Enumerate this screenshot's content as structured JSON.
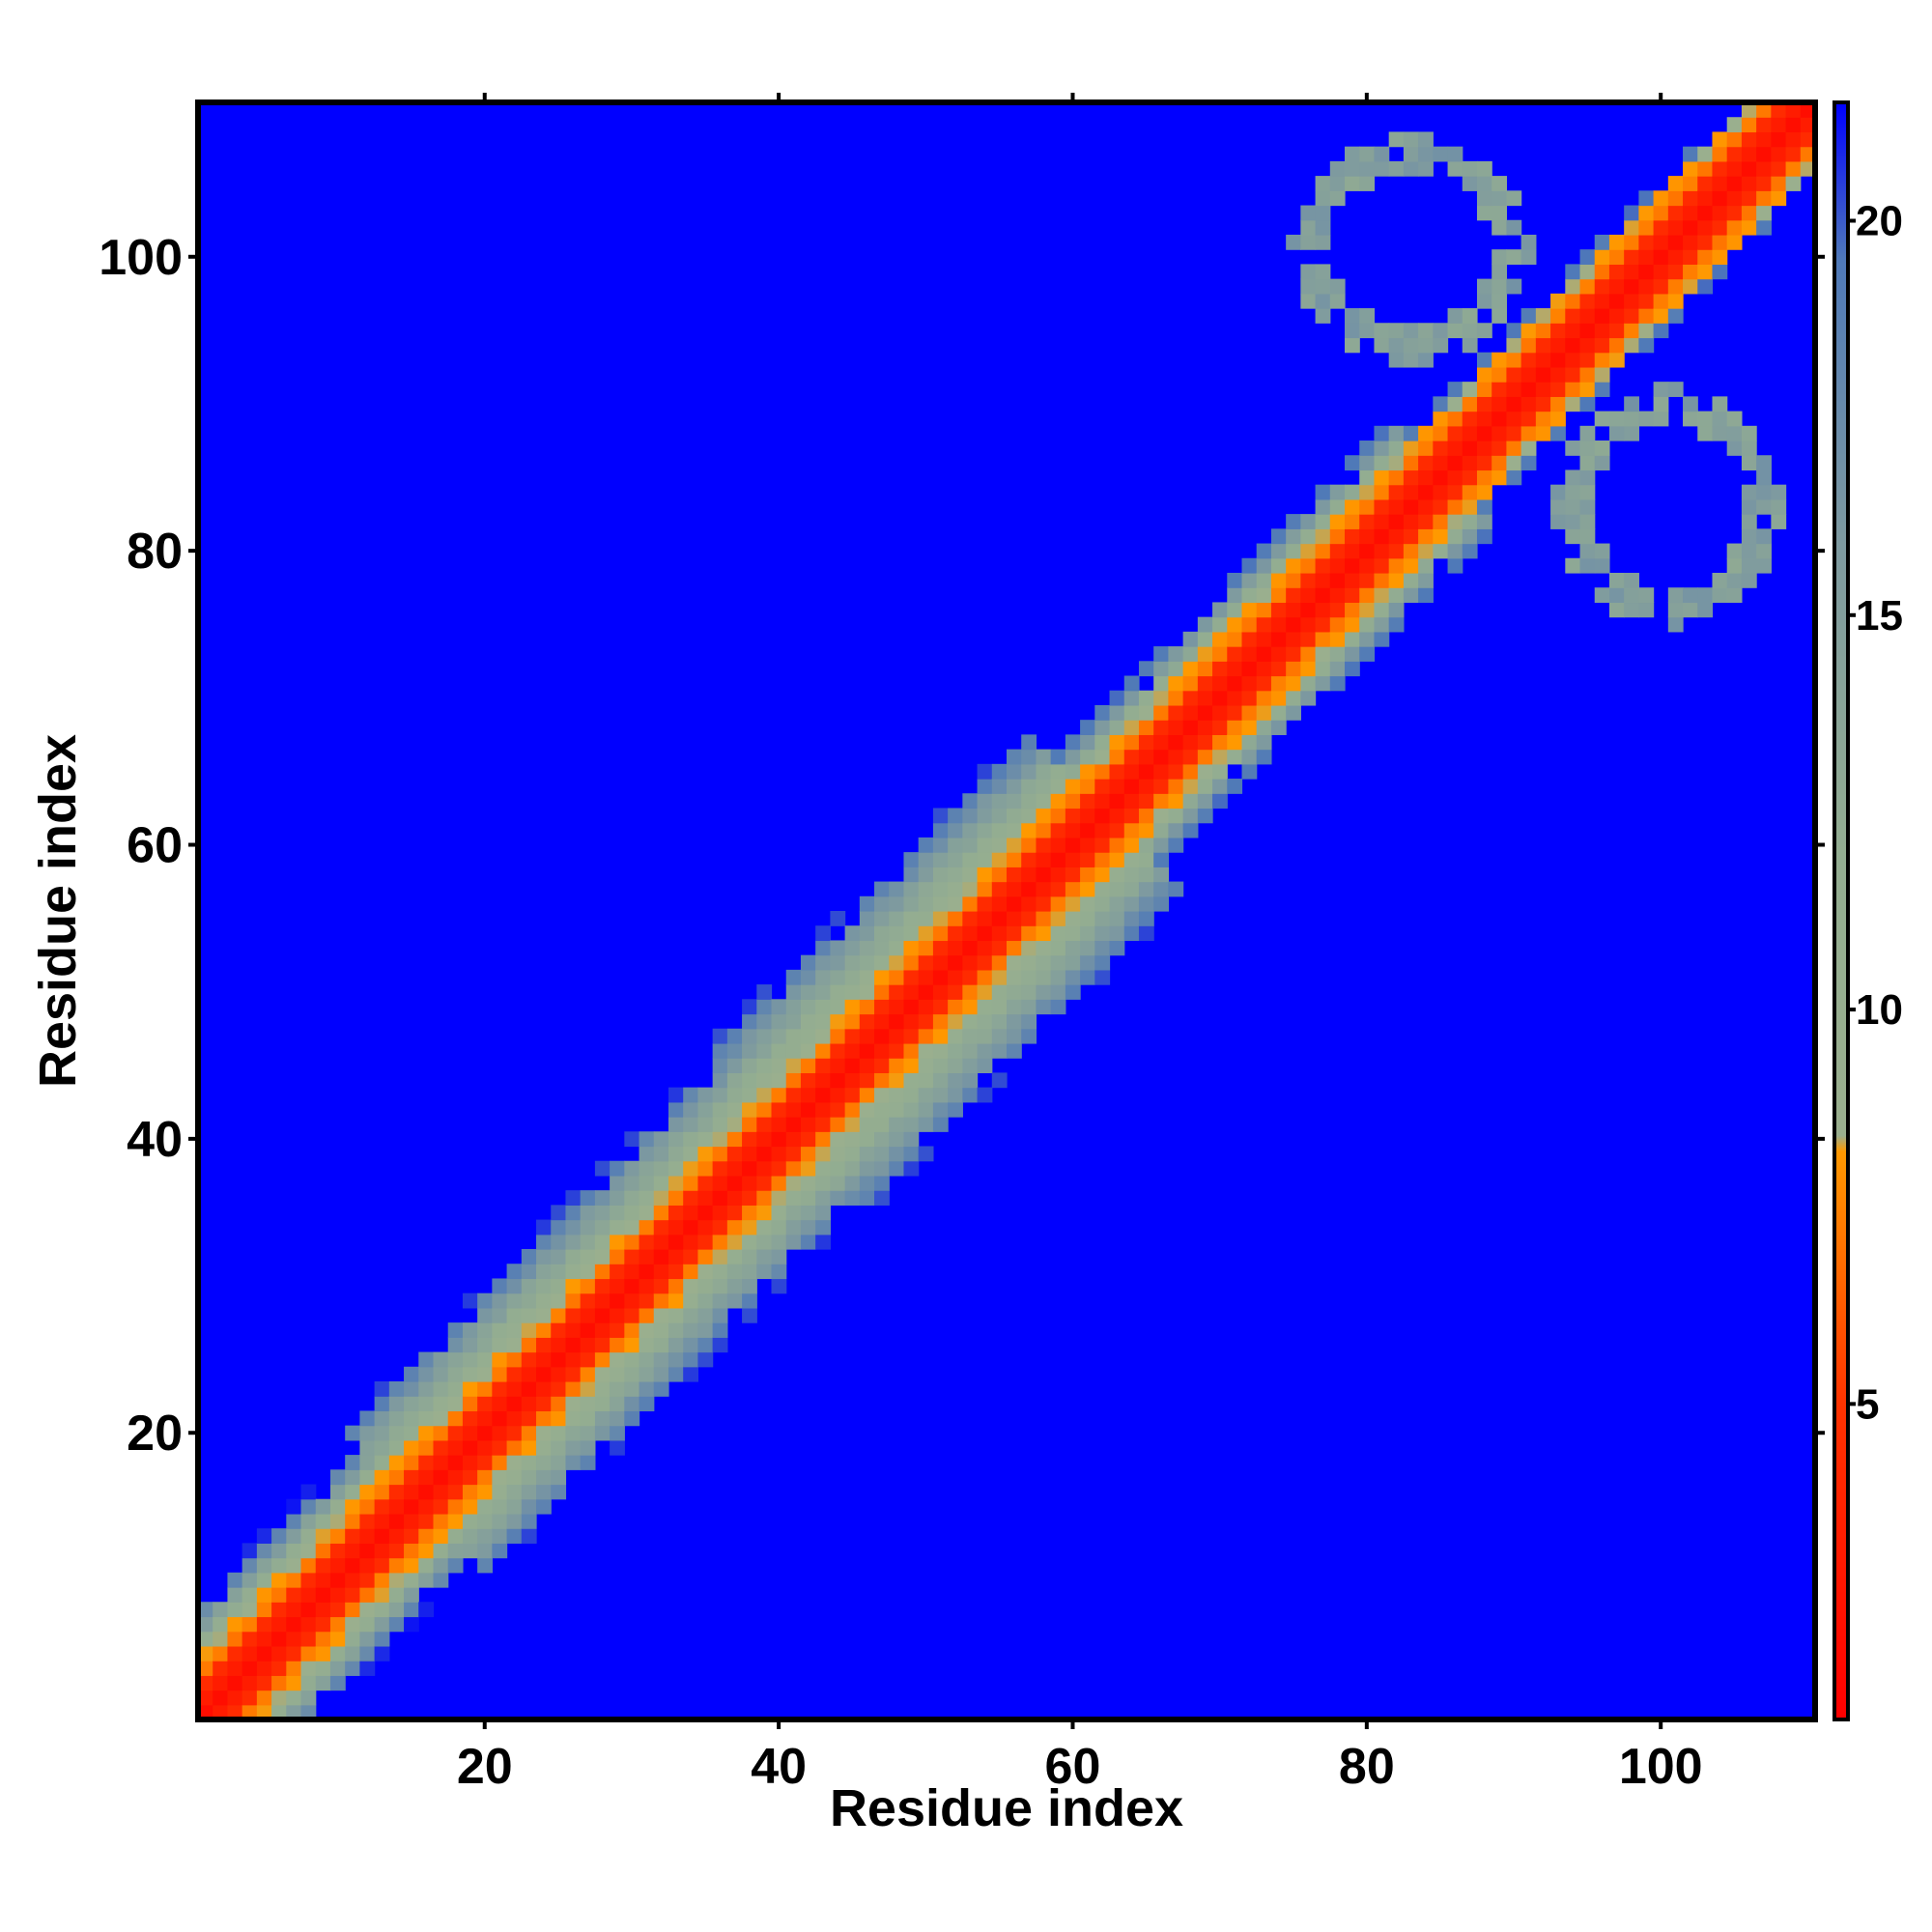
{
  "chart_data": {
    "type": "heatmap",
    "title": "",
    "xlabel": "Residue index",
    "ylabel": "Residue index",
    "n_residues": 110,
    "xlim": [
      1,
      110
    ],
    "ylim": [
      1,
      110
    ],
    "x_ticks": [
      20,
      40,
      60,
      80,
      100
    ],
    "y_ticks": [
      20,
      40,
      60,
      80,
      100
    ],
    "colorbar": {
      "range": [
        1,
        21.5
      ],
      "ticks": [
        5,
        10,
        15,
        20
      ],
      "stops": [
        {
          "value": 1,
          "color": "#ff0000"
        },
        {
          "value": 5,
          "color": "#ff3300"
        },
        {
          "value": 8.2,
          "color": "#ff9900"
        },
        {
          "value": 8.4,
          "color": "#9aaf8e"
        },
        {
          "value": 12,
          "color": "#93ad91"
        },
        {
          "value": 16,
          "color": "#7d99a0"
        },
        {
          "value": 19.5,
          "color": "#4f79b8"
        },
        {
          "value": 21.5,
          "color": "#0000ff"
        }
      ]
    },
    "background_color": "#0000ff",
    "structure": {
      "diagonal_width": 5.5,
      "band_segments": [
        {
          "i_from": 1,
          "i_to": 15,
          "half_width": 7.5
        },
        {
          "i_from": 15,
          "i_to": 40,
          "half_width": 9.5
        },
        {
          "i_from": 40,
          "i_to": 62,
          "half_width": 10.5
        },
        {
          "i_from": 62,
          "i_to": 85,
          "half_width": 7
        },
        {
          "i_from": 85,
          "i_to": 110,
          "half_width": 5
        }
      ],
      "cross_contact_loops": [
        {
          "i_from": 75,
          "i_to": 91,
          "j_from": 93,
          "j_to": 108
        },
        {
          "i_from": 93,
          "i_to": 108,
          "j_from": 75,
          "j_to": 91
        }
      ]
    }
  }
}
